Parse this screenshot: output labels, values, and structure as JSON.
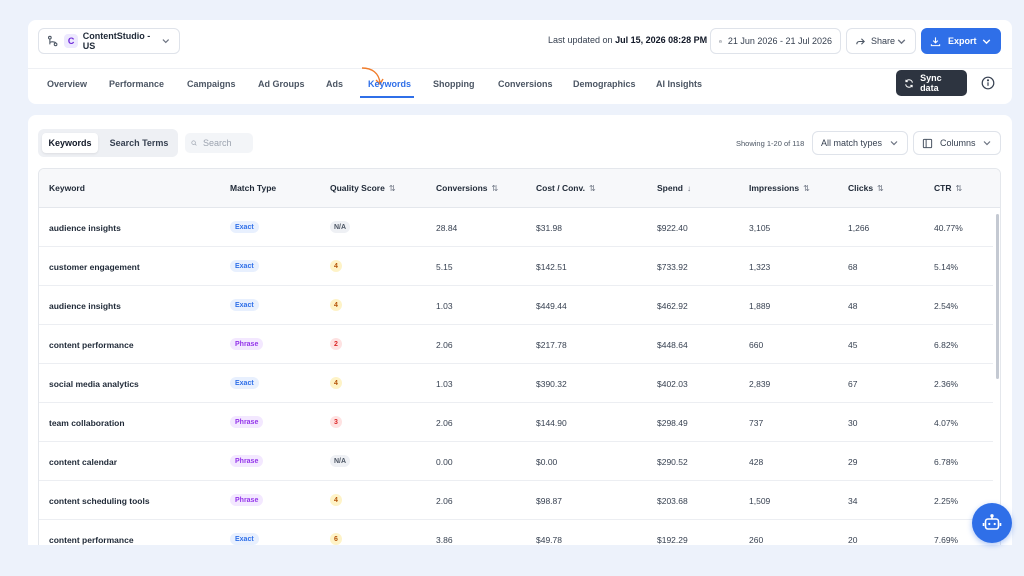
{
  "header": {
    "account": {
      "badge": "C",
      "name": "ContentStudio - US"
    },
    "last_updated_prefix": "Last updated on",
    "last_updated_value": "Jul 15, 2026 08:28 PM",
    "date_range": "21 Jun 2026 - 21 Jul 2026",
    "share_label": "Share",
    "export_label": "Export",
    "sync_label": "Sync data"
  },
  "tabs": [
    {
      "label": "Overview"
    },
    {
      "label": "Performance"
    },
    {
      "label": "Campaigns"
    },
    {
      "label": "Ad Groups"
    },
    {
      "label": "Ads"
    },
    {
      "label": "Keywords"
    },
    {
      "label": "Shopping"
    },
    {
      "label": "Conversions"
    },
    {
      "label": "Demographics"
    },
    {
      "label": "AI Insights"
    }
  ],
  "active_tab": "Keywords",
  "toolbar": {
    "segment": [
      "Keywords",
      "Search Terms"
    ],
    "search_placeholder": "Search",
    "showing": "Showing 1-20 of 118",
    "match_filter": "All match types",
    "columns_label": "Columns"
  },
  "table": {
    "columns": [
      {
        "label": "Keyword",
        "sort": ""
      },
      {
        "label": "Match Type",
        "sort": ""
      },
      {
        "label": "Quality Score",
        "sort": "⇅"
      },
      {
        "label": "Conversions",
        "sort": "⇅"
      },
      {
        "label": "Cost / Conv.",
        "sort": "⇅"
      },
      {
        "label": "Spend",
        "sort": "↓"
      },
      {
        "label": "Impressions",
        "sort": "⇅"
      },
      {
        "label": "Clicks",
        "sort": "⇅"
      },
      {
        "label": "CTR",
        "sort": "⇅"
      }
    ],
    "rows": [
      {
        "keyword": "audience insights",
        "match": "Exact",
        "qs": "N/A",
        "conversions": "28.84",
        "cost_conv": "$31.98",
        "spend": "$922.40",
        "impressions": "3,105",
        "clicks": "1,266",
        "ctr": "40.77%"
      },
      {
        "keyword": "customer engagement",
        "match": "Exact",
        "qs": "4",
        "conversions": "5.15",
        "cost_conv": "$142.51",
        "spend": "$733.92",
        "impressions": "1,323",
        "clicks": "68",
        "ctr": "5.14%"
      },
      {
        "keyword": "audience insights",
        "match": "Exact",
        "qs": "4",
        "conversions": "1.03",
        "cost_conv": "$449.44",
        "spend": "$462.92",
        "impressions": "1,889",
        "clicks": "48",
        "ctr": "2.54%"
      },
      {
        "keyword": "content performance",
        "match": "Phrase",
        "qs": "2",
        "conversions": "2.06",
        "cost_conv": "$217.78",
        "spend": "$448.64",
        "impressions": "660",
        "clicks": "45",
        "ctr": "6.82%"
      },
      {
        "keyword": "social media analytics",
        "match": "Exact",
        "qs": "4",
        "conversions": "1.03",
        "cost_conv": "$390.32",
        "spend": "$402.03",
        "impressions": "2,839",
        "clicks": "67",
        "ctr": "2.36%"
      },
      {
        "keyword": "team collaboration",
        "match": "Phrase",
        "qs": "3",
        "conversions": "2.06",
        "cost_conv": "$144.90",
        "spend": "$298.49",
        "impressions": "737",
        "clicks": "30",
        "ctr": "4.07%"
      },
      {
        "keyword": "content calendar",
        "match": "Phrase",
        "qs": "N/A",
        "conversions": "0.00",
        "cost_conv": "$0.00",
        "spend": "$290.52",
        "impressions": "428",
        "clicks": "29",
        "ctr": "6.78%"
      },
      {
        "keyword": "content scheduling tools",
        "match": "Phrase",
        "qs": "4",
        "conversions": "2.06",
        "cost_conv": "$98.87",
        "spend": "$203.68",
        "impressions": "1,509",
        "clicks": "34",
        "ctr": "2.25%"
      },
      {
        "keyword": "content performance",
        "match": "Exact",
        "qs": "6",
        "conversions": "3.86",
        "cost_conv": "$49.78",
        "spend": "$192.29",
        "impressions": "260",
        "clicks": "20",
        "ctr": "7.69%"
      }
    ]
  },
  "icons": {
    "account": "branch-icon",
    "date": "calendar-icon",
    "share": "share-arrow-icon",
    "export": "download-icon",
    "sync": "refresh-icon",
    "info": "info-icon",
    "search": "search-icon",
    "columns": "columns-icon",
    "assistant": "robot-icon"
  },
  "colors": {
    "accent": "#2f6fe8",
    "hint_arrow": "#f07c2a",
    "sync_bg": "#2d3440"
  }
}
